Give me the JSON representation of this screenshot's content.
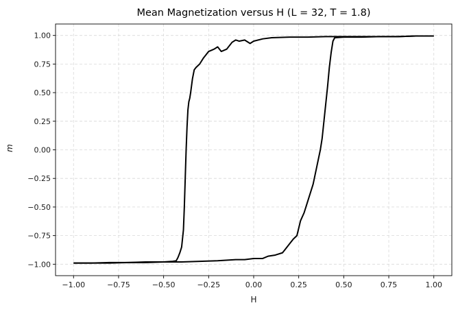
{
  "chart_data": {
    "type": "line",
    "title": "Mean Magnetization versus H (L = 32, T = 1.8)",
    "xlabel": "H",
    "ylabel": "m",
    "xlim": [
      -1.1,
      1.1
    ],
    "ylim": [
      -1.1,
      1.1
    ],
    "xticks": [
      -1.0,
      -0.75,
      -0.5,
      -0.25,
      0.0,
      0.25,
      0.5,
      0.75,
      1.0
    ],
    "xtick_labels": [
      "−1.00",
      "−0.75",
      "−0.50",
      "−0.25",
      "0.00",
      "0.25",
      "0.50",
      "0.75",
      "1.00"
    ],
    "yticks": [
      -1.0,
      -0.75,
      -0.5,
      -0.25,
      0.0,
      0.25,
      0.5,
      0.75,
      1.0
    ],
    "ytick_labels": [
      "−1.00",
      "−0.75",
      "−0.50",
      "−0.25",
      "0.00",
      "0.25",
      "0.50",
      "0.75",
      "1.00"
    ],
    "grid": true,
    "series": [
      {
        "color": "#000000",
        "segments": [
          {
            "x": [
              -1.0,
              -0.9,
              -0.8,
              -0.7,
              -0.6,
              -0.5,
              -0.45,
              -0.43,
              -0.42,
              -0.41,
              -0.4,
              -0.39,
              -0.385,
              -0.38,
              -0.375,
              -0.37,
              -0.365,
              -0.36,
              -0.355,
              -0.35,
              -0.34,
              -0.33,
              -0.32,
              -0.3,
              -0.28,
              -0.25,
              -0.22,
              -0.2,
              -0.18,
              -0.15,
              -0.12,
              -0.1,
              -0.08,
              -0.05,
              -0.02,
              0.0,
              0.05,
              0.1,
              0.2,
              0.3,
              0.4,
              0.5,
              0.6,
              0.7,
              0.8,
              0.9,
              1.0
            ],
            "y": [
              -0.99,
              -0.99,
              -0.985,
              -0.985,
              -0.98,
              -0.98,
              -0.975,
              -0.97,
              -0.94,
              -0.9,
              -0.85,
              -0.7,
              -0.5,
              -0.25,
              0.0,
              0.2,
              0.35,
              0.42,
              0.45,
              0.5,
              0.62,
              0.7,
              0.72,
              0.75,
              0.8,
              0.86,
              0.88,
              0.9,
              0.86,
              0.88,
              0.94,
              0.96,
              0.95,
              0.96,
              0.93,
              0.95,
              0.97,
              0.98,
              0.985,
              0.985,
              0.99,
              0.99,
              0.99,
              0.99,
              0.99,
              0.995,
              0.995
            ]
          },
          {
            "x": [
              1.0,
              0.9,
              0.8,
              0.7,
              0.6,
              0.5,
              0.45,
              0.44,
              0.43,
              0.42,
              0.41,
              0.4,
              0.39,
              0.38,
              0.37,
              0.35,
              0.33,
              0.3,
              0.28,
              0.26,
              0.24,
              0.22,
              0.2,
              0.18,
              0.16,
              0.12,
              0.08,
              0.05,
              0.0,
              -0.05,
              -0.1,
              -0.2,
              -0.3,
              -0.4,
              -0.5,
              -0.6,
              -0.7,
              -0.8,
              -0.9,
              -1.0
            ],
            "y": [
              0.995,
              0.995,
              0.99,
              0.99,
              0.985,
              0.985,
              0.98,
              0.95,
              0.85,
              0.72,
              0.55,
              0.4,
              0.25,
              0.1,
              0.0,
              -0.15,
              -0.3,
              -0.45,
              -0.55,
              -0.62,
              -0.75,
              -0.78,
              -0.82,
              -0.86,
              -0.9,
              -0.92,
              -0.93,
              -0.95,
              -0.95,
              -0.96,
              -0.96,
              -0.97,
              -0.975,
              -0.98,
              -0.98,
              -0.985,
              -0.985,
              -0.99,
              -0.99,
              -0.99
            ]
          }
        ]
      }
    ]
  }
}
